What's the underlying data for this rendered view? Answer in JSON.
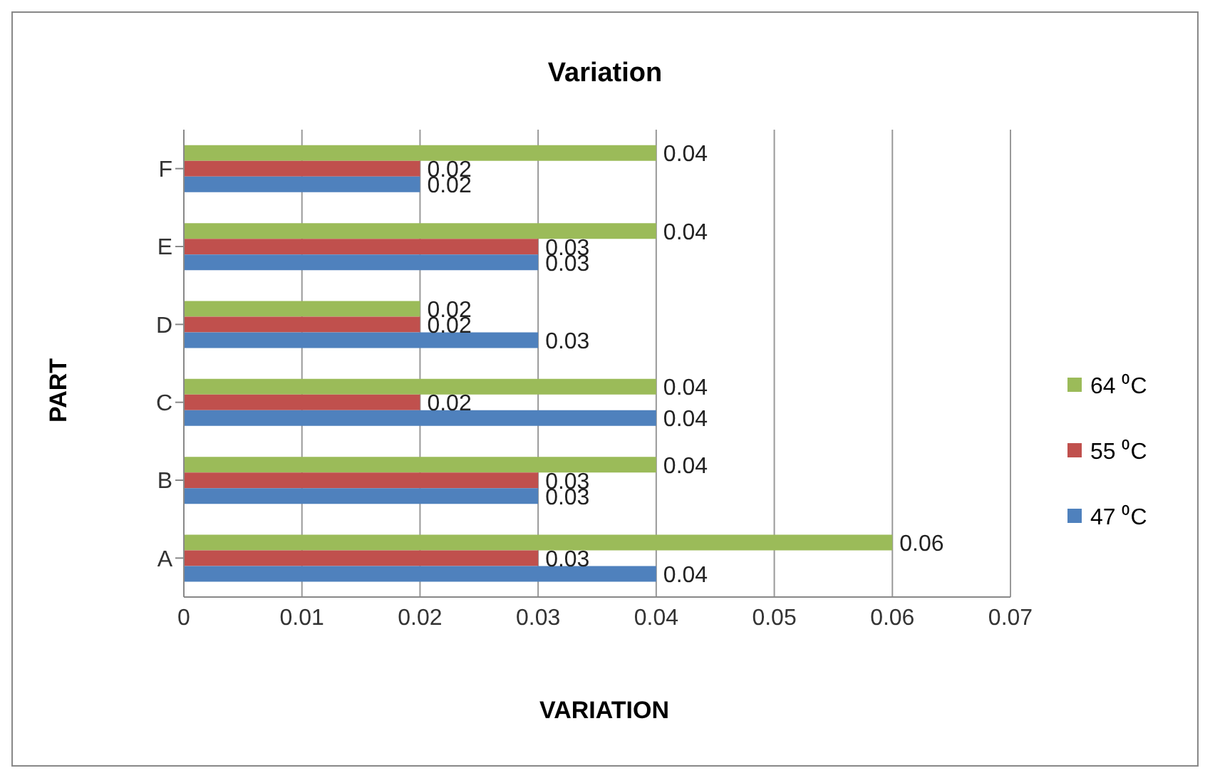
{
  "chart_data": {
    "type": "bar",
    "orientation": "horizontal",
    "title": "Variation",
    "xlabel": "VARIATION",
    "ylabel": "PART",
    "categories": [
      "F",
      "E",
      "D",
      "C",
      "B",
      "A"
    ],
    "series": [
      {
        "name": "64 ⁰C",
        "color": "#9bbb59",
        "values": [
          0.04,
          0.04,
          0.02,
          0.04,
          0.04,
          0.06
        ]
      },
      {
        "name": "55 ⁰C",
        "color": "#c0504d",
        "values": [
          0.02,
          0.03,
          0.02,
          0.02,
          0.03,
          0.03
        ]
      },
      {
        "name": "47 ⁰C",
        "color": "#4f81bd",
        "values": [
          0.02,
          0.03,
          0.03,
          0.04,
          0.03,
          0.04
        ]
      }
    ],
    "xlim": [
      0,
      0.07
    ],
    "xticks": [
      0,
      0.01,
      0.02,
      0.03,
      0.04,
      0.05,
      0.06,
      0.07
    ],
    "grid": "x",
    "legend": "right",
    "data_labels": true
  }
}
